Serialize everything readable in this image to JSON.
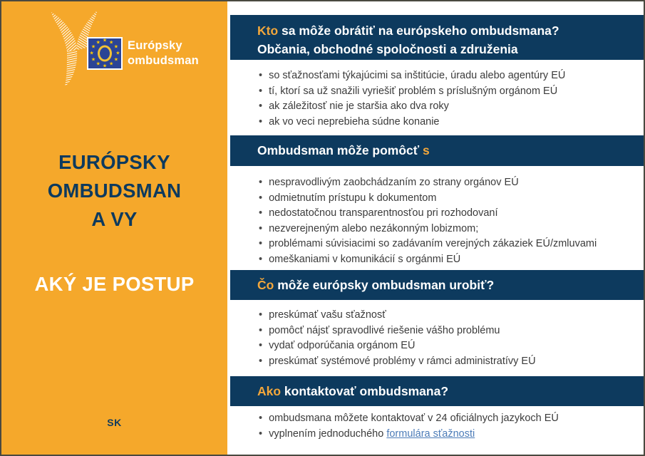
{
  "colors": {
    "panel_orange": "#F5A82B",
    "navy": "#0D3A5E",
    "header_accent": "#F3A73B",
    "body_text": "#3B3B3B",
    "link_blue": "#4C7CB8",
    "flag_blue": "#2B4495",
    "flag_star_yellow": "#FFCC00"
  },
  "logo": {
    "brand_line1": "Európsky",
    "brand_line2": "ombudsman",
    "flag_icon": "eu-flag-with-O-emblem",
    "bird_icon": "white-line-bird-emblem"
  },
  "left": {
    "title_line1": "EURÓPSKY",
    "title_line2": "OMBUDSMAN",
    "title_line3": "A VY",
    "subtitle": "AKÝ JE POSTUP",
    "language_code": "SK"
  },
  "sections": [
    {
      "header_accent": "Kto",
      "header_rest": " sa môže obrátiť na európskeho ombudsmana?",
      "header_line2": "Občania, obchodné spoločnosti a združenia",
      "accent_position": "start",
      "bullets": [
        {
          "text": "so sťažnosťami týkajúcimi sa inštitúcie, úradu alebo agentúry EÚ"
        },
        {
          "text": "tí, ktorí sa už snažili vyriešiť problém s príslušným orgánom EÚ"
        },
        {
          "text": "ak záležitosť nie je staršia ako dva roky"
        },
        {
          "text": "ak vo veci neprebieha súdne konanie"
        }
      ]
    },
    {
      "header_rest": "Ombudsman môže pomôcť ",
      "header_accent": "s",
      "accent_position": "end",
      "bullets": [
        {
          "text": "nespravodlivým zaobchádzaním zo strany orgánov EÚ"
        },
        {
          "text": "odmietnutím prístupu k dokumentom"
        },
        {
          "text": "nedostatočnou transparentnosťou pri rozhodovaní"
        },
        {
          "text": "nezverejneným alebo nezákonným lobizmom;"
        },
        {
          "text": "problémami súvisiacimi so zadávaním verejných zákaziek EÚ/zmluvami"
        },
        {
          "text": "omeškaniami v komunikácií s orgánmi EÚ"
        }
      ]
    },
    {
      "header_accent": "Čo",
      "header_rest": " môže európsky ombudsman urobiť?",
      "accent_position": "start",
      "bullets": [
        {
          "text": "preskúmať vašu sťažnosť"
        },
        {
          "text": "pomôcť nájsť spravodlivé riešenie vášho problému"
        },
        {
          "text": "vydať odporúčania orgánom EÚ"
        },
        {
          "text": "preskúmať systémové problémy v rámci administratívy EÚ"
        }
      ]
    },
    {
      "header_accent": "Ako",
      "header_rest": " kontaktovať ombudsmana?",
      "accent_position": "start",
      "bullets": [
        {
          "text": "ombudsmana môžete kontaktovať v 24 oficiálnych jazykoch EÚ"
        },
        {
          "text": "vyplnením jednoduchého ",
          "link": "formulára sťažnosti"
        }
      ]
    }
  ]
}
